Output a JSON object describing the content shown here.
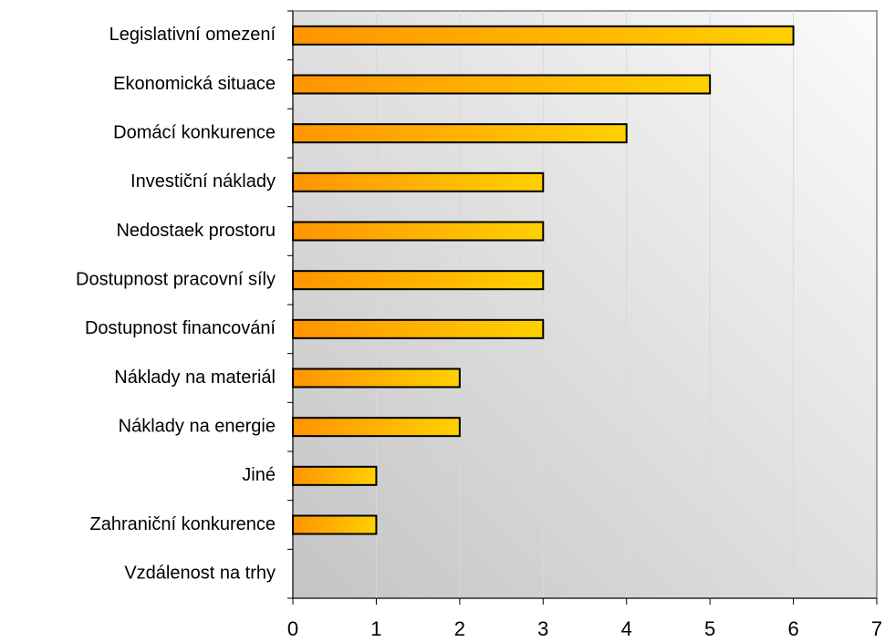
{
  "chart_data": {
    "type": "bar",
    "orientation": "horizontal",
    "categories": [
      "Legislativní omezení",
      "Ekonomická situace",
      "Domácí konkurence",
      "Investiční náklady",
      "Nedostaek prostoru",
      "Dostupnost pracovní síly",
      "Dostupnost financování",
      "Náklady na materiál",
      "Náklady na energie",
      "Jiné",
      "Zahraniční konkurence",
      "Vzdálenost na trhy"
    ],
    "values": [
      6,
      5,
      4,
      3,
      3,
      3,
      3,
      2,
      2,
      1,
      1,
      0
    ],
    "color": [
      "#ff9400",
      "#ffd000"
    ],
    "xlim": [
      0,
      7
    ],
    "xticks": [
      0,
      1,
      2,
      3,
      4,
      5,
      6,
      7
    ],
    "grid": true
  }
}
